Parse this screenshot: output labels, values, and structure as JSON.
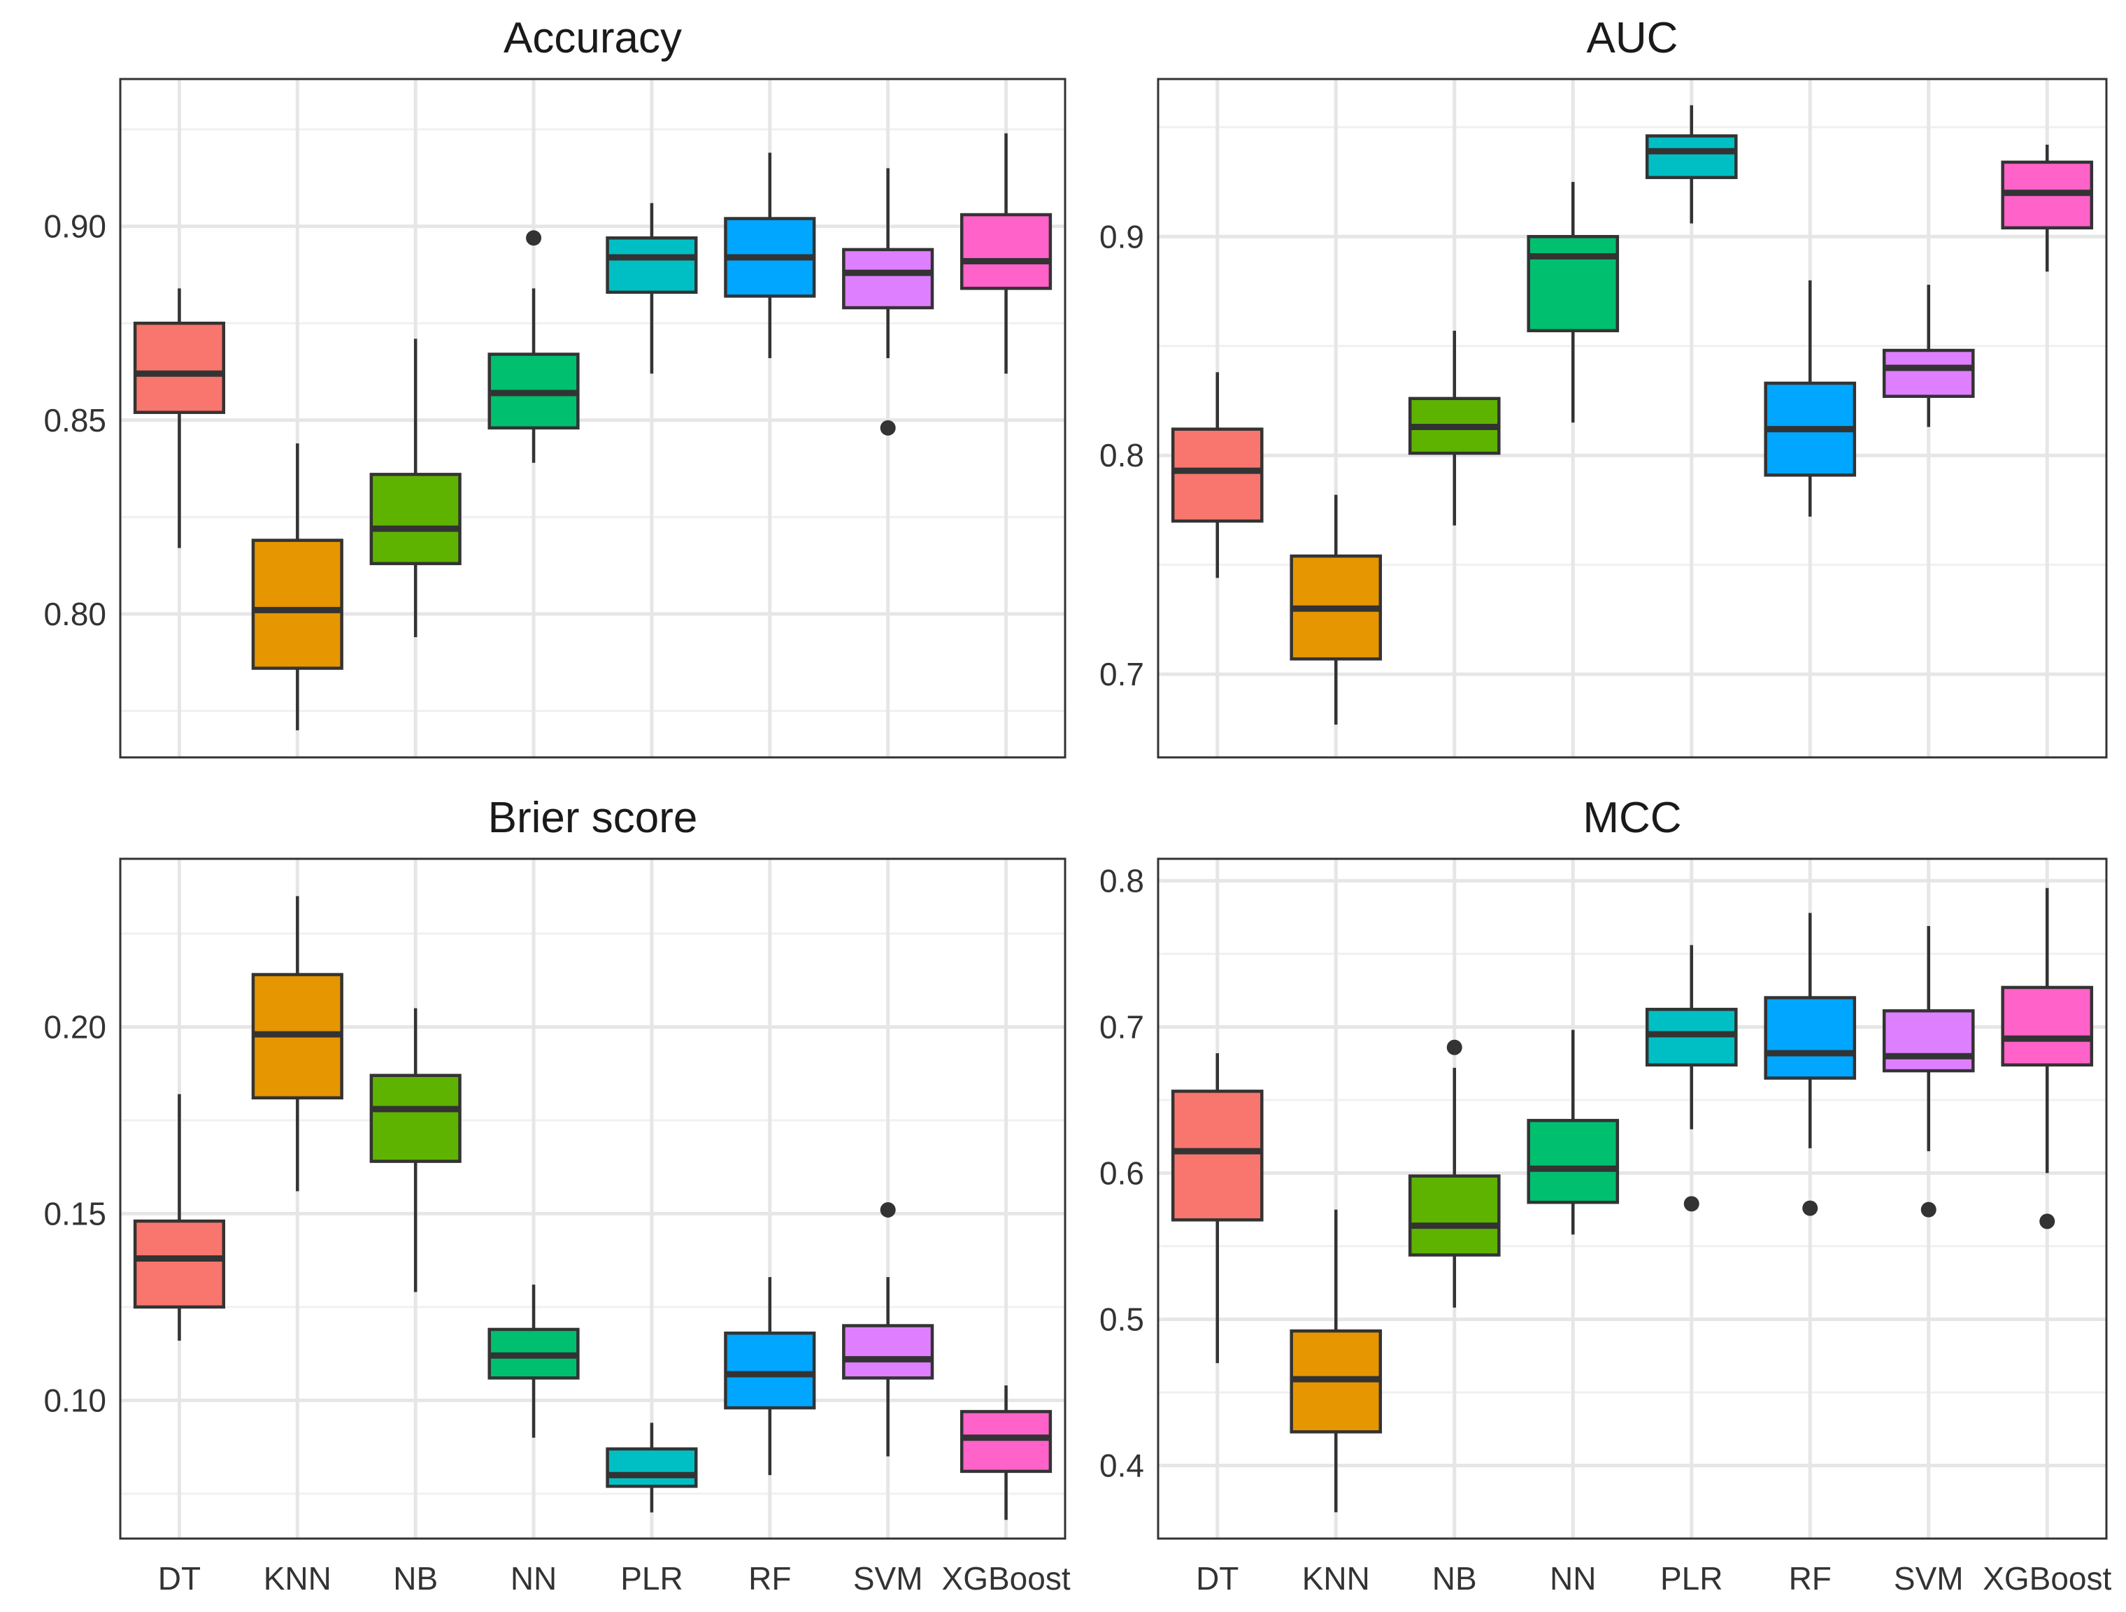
{
  "chart_data": [
    {
      "type": "box",
      "title": "Accuracy",
      "categories": [
        "DT",
        "KNN",
        "NB",
        "NN",
        "PLR",
        "RF",
        "SVM",
        "XGBoost"
      ],
      "ylim": [
        0.763,
        0.938
      ],
      "yticks": [
        0.8,
        0.85,
        0.9
      ],
      "ytick_labels": [
        "0.80",
        "0.85",
        "0.90"
      ],
      "show_x_labels": false,
      "boxes": [
        {
          "min": 0.817,
          "q1": 0.852,
          "median": 0.862,
          "q3": 0.875,
          "max": 0.884,
          "outliers": []
        },
        {
          "min": 0.77,
          "q1": 0.786,
          "median": 0.801,
          "q3": 0.819,
          "max": 0.844,
          "outliers": []
        },
        {
          "min": 0.794,
          "q1": 0.813,
          "median": 0.822,
          "q3": 0.836,
          "max": 0.871,
          "outliers": []
        },
        {
          "min": 0.839,
          "q1": 0.848,
          "median": 0.857,
          "q3": 0.867,
          "max": 0.884,
          "outliers": [
            0.897
          ]
        },
        {
          "min": 0.862,
          "q1": 0.883,
          "median": 0.892,
          "q3": 0.897,
          "max": 0.906,
          "outliers": []
        },
        {
          "min": 0.866,
          "q1": 0.882,
          "median": 0.892,
          "q3": 0.902,
          "max": 0.919,
          "outliers": []
        },
        {
          "min": 0.866,
          "q1": 0.879,
          "median": 0.888,
          "q3": 0.894,
          "max": 0.915,
          "outliers": [
            0.848
          ]
        },
        {
          "min": 0.862,
          "q1": 0.884,
          "median": 0.891,
          "q3": 0.903,
          "max": 0.924,
          "outliers": []
        }
      ]
    },
    {
      "type": "box",
      "title": "AUC",
      "categories": [
        "DT",
        "KNN",
        "NB",
        "NN",
        "PLR",
        "RF",
        "SVM",
        "XGBoost"
      ],
      "ylim": [
        0.662,
        0.972
      ],
      "yticks": [
        0.7,
        0.8,
        0.9
      ],
      "ytick_labels": [
        "0.7",
        "0.8",
        "0.9"
      ],
      "show_x_labels": false,
      "boxes": [
        {
          "min": 0.744,
          "q1": 0.77,
          "median": 0.793,
          "q3": 0.812,
          "max": 0.838,
          "outliers": []
        },
        {
          "min": 0.677,
          "q1": 0.707,
          "median": 0.73,
          "q3": 0.754,
          "max": 0.782,
          "outliers": []
        },
        {
          "min": 0.768,
          "q1": 0.801,
          "median": 0.813,
          "q3": 0.826,
          "max": 0.857,
          "outliers": []
        },
        {
          "min": 0.815,
          "q1": 0.857,
          "median": 0.891,
          "q3": 0.9,
          "max": 0.925,
          "outliers": []
        },
        {
          "min": 0.906,
          "q1": 0.927,
          "median": 0.939,
          "q3": 0.946,
          "max": 0.96,
          "outliers": []
        },
        {
          "min": 0.772,
          "q1": 0.791,
          "median": 0.812,
          "q3": 0.833,
          "max": 0.88,
          "outliers": []
        },
        {
          "min": 0.813,
          "q1": 0.827,
          "median": 0.84,
          "q3": 0.848,
          "max": 0.878,
          "outliers": []
        },
        {
          "min": 0.884,
          "q1": 0.904,
          "median": 0.92,
          "q3": 0.934,
          "max": 0.942,
          "outliers": []
        }
      ]
    },
    {
      "type": "box",
      "title": "Brier score",
      "categories": [
        "DT",
        "KNN",
        "NB",
        "NN",
        "PLR",
        "RF",
        "SVM",
        "XGBoost"
      ],
      "ylim": [
        0.063,
        0.245
      ],
      "yticks": [
        0.1,
        0.15,
        0.2
      ],
      "ytick_labels": [
        "0.10",
        "0.15",
        "0.20"
      ],
      "show_x_labels": true,
      "boxes": [
        {
          "min": 0.116,
          "q1": 0.125,
          "median": 0.138,
          "q3": 0.148,
          "max": 0.182,
          "outliers": []
        },
        {
          "min": 0.156,
          "q1": 0.181,
          "median": 0.198,
          "q3": 0.214,
          "max": 0.235,
          "outliers": []
        },
        {
          "min": 0.129,
          "q1": 0.164,
          "median": 0.178,
          "q3": 0.187,
          "max": 0.205,
          "outliers": []
        },
        {
          "min": 0.09,
          "q1": 0.106,
          "median": 0.112,
          "q3": 0.119,
          "max": 0.131,
          "outliers": []
        },
        {
          "min": 0.07,
          "q1": 0.077,
          "median": 0.08,
          "q3": 0.087,
          "max": 0.094,
          "outliers": []
        },
        {
          "min": 0.08,
          "q1": 0.098,
          "median": 0.107,
          "q3": 0.118,
          "max": 0.133,
          "outliers": []
        },
        {
          "min": 0.085,
          "q1": 0.106,
          "median": 0.111,
          "q3": 0.12,
          "max": 0.133,
          "outliers": [
            0.151
          ]
        },
        {
          "min": 0.068,
          "q1": 0.081,
          "median": 0.09,
          "q3": 0.097,
          "max": 0.104,
          "outliers": []
        }
      ]
    },
    {
      "type": "box",
      "title": "MCC",
      "categories": [
        "DT",
        "KNN",
        "NB",
        "NN",
        "PLR",
        "RF",
        "SVM",
        "XGBoost"
      ],
      "ylim": [
        0.35,
        0.815
      ],
      "yticks": [
        0.4,
        0.5,
        0.6,
        0.7,
        0.8
      ],
      "ytick_labels": [
        "0.4",
        "0.5",
        "0.6",
        "0.7",
        "0.8"
      ],
      "show_x_labels": true,
      "boxes": [
        {
          "min": 0.47,
          "q1": 0.568,
          "median": 0.615,
          "q3": 0.656,
          "max": 0.682,
          "outliers": []
        },
        {
          "min": 0.368,
          "q1": 0.423,
          "median": 0.459,
          "q3": 0.492,
          "max": 0.575,
          "outliers": []
        },
        {
          "min": 0.508,
          "q1": 0.544,
          "median": 0.564,
          "q3": 0.598,
          "max": 0.672,
          "outliers": [
            0.686
          ]
        },
        {
          "min": 0.558,
          "q1": 0.58,
          "median": 0.603,
          "q3": 0.636,
          "max": 0.698,
          "outliers": []
        },
        {
          "min": 0.63,
          "q1": 0.674,
          "median": 0.695,
          "q3": 0.712,
          "max": 0.756,
          "outliers": [
            0.579
          ]
        },
        {
          "min": 0.617,
          "q1": 0.665,
          "median": 0.682,
          "q3": 0.72,
          "max": 0.778,
          "outliers": [
            0.576
          ]
        },
        {
          "min": 0.615,
          "q1": 0.67,
          "median": 0.68,
          "q3": 0.711,
          "max": 0.769,
          "outliers": [
            0.575
          ]
        },
        {
          "min": 0.6,
          "q1": 0.674,
          "median": 0.692,
          "q3": 0.727,
          "max": 0.795,
          "outliers": [
            0.567
          ]
        }
      ]
    }
  ],
  "colors": [
    "#F8766D",
    "#E69600",
    "#5EB300",
    "#00BF6F",
    "#00BFC4",
    "#00A6FF",
    "#DE7FFF",
    "#FF62C9"
  ]
}
